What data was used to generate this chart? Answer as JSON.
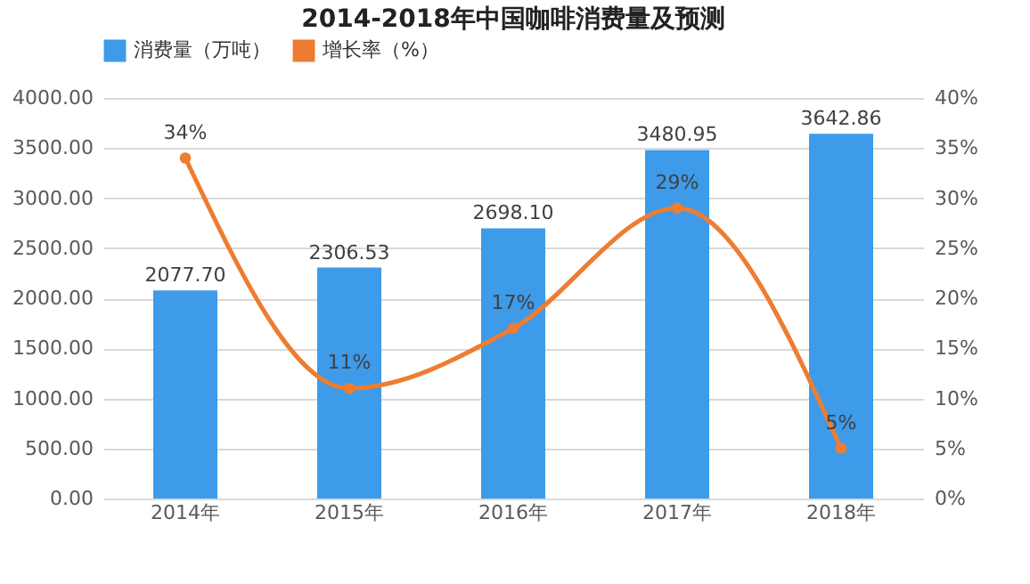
{
  "chart_data": {
    "type": "bar",
    "title": "2014-2018年中国咖啡消费量及预测",
    "categories": [
      "2014年",
      "2015年",
      "2016年",
      "2017年",
      "2018年"
    ],
    "series": [
      {
        "name": "消费量（万吨）",
        "color": "#3d9be9",
        "values": [
          2077.7,
          2306.53,
          2698.1,
          3480.95,
          3642.86
        ],
        "value_labels": [
          "2077.70",
          "2306.53",
          "2698.10",
          "3480.95",
          "3642.86"
        ]
      },
      {
        "name": "增长率（%）",
        "type": "line",
        "axis": "y2",
        "color": "#ed7d31",
        "values": [
          34,
          11,
          17,
          29,
          5
        ],
        "value_labels": [
          "34%",
          "11%",
          "17%",
          "29%",
          "5%"
        ],
        "marker": "circle"
      }
    ],
    "ylim": [
      0,
      4000
    ],
    "yticks": [
      {
        "value": 0,
        "label": "0.00"
      },
      {
        "value": 500,
        "label": "500.00"
      },
      {
        "value": 1000,
        "label": "1000.00"
      },
      {
        "value": 1500,
        "label": "1500.00"
      },
      {
        "value": 2000,
        "label": "2000.00"
      },
      {
        "value": 2500,
        "label": "2500.00"
      },
      {
        "value": 3000,
        "label": "3000.00"
      },
      {
        "value": 3500,
        "label": "3500.00"
      },
      {
        "value": 4000,
        "label": "4000.00"
      }
    ],
    "y2lim": [
      0,
      40
    ],
    "y2ticks": [
      {
        "value": 0,
        "label": "0%"
      },
      {
        "value": 5,
        "label": "5%"
      },
      {
        "value": 10,
        "label": "10%"
      },
      {
        "value": 15,
        "label": "15%"
      },
      {
        "value": 20,
        "label": "20%"
      },
      {
        "value": 25,
        "label": "25%"
      },
      {
        "value": 30,
        "label": "30%"
      },
      {
        "value": 35,
        "label": "35%"
      },
      {
        "value": 40,
        "label": "40%"
      }
    ],
    "grid": "y",
    "legend": "top"
  }
}
